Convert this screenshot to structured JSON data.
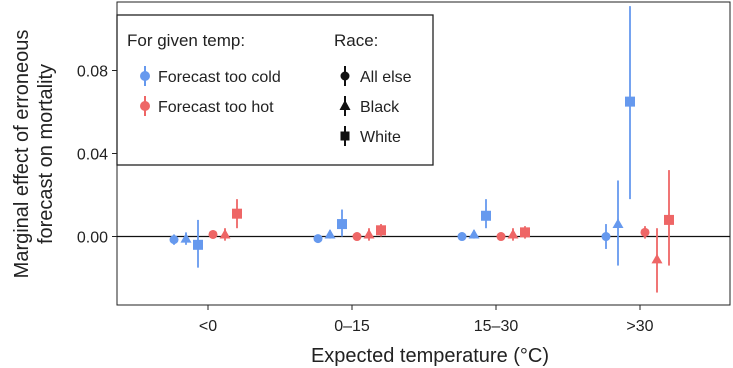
{
  "chart_data": {
    "type": "scatter",
    "xlabel": "Expected temperature (°C)",
    "ylabel_line1": "Marginal effect of erroneous",
    "ylabel_line2": "forecast on mortality",
    "categories": [
      "<0",
      "0–15",
      "15–30",
      ">30"
    ],
    "ylim": [
      -0.033,
      0.113
    ],
    "yticks": [
      0.0,
      0.04,
      0.08
    ],
    "ytick_labels": [
      "0.00",
      "0.04",
      "0.08"
    ],
    "grid": false,
    "legend_placement": "top-left",
    "legend": {
      "color_title": "For given temp:",
      "shape_title": "Race:",
      "colors": [
        {
          "label": "Forecast too cold",
          "color": "#6699ee"
        },
        {
          "label": "Forecast too hot",
          "color": "#ee6666"
        }
      ],
      "shapes": [
        {
          "label": "All else",
          "shape": "circle"
        },
        {
          "label": "Black",
          "shape": "triangle"
        },
        {
          "label": "White",
          "shape": "square"
        }
      ]
    },
    "series": [
      {
        "forecast": "cold",
        "race": "All else",
        "values": [
          {
            "category": "<0",
            "y": -0.0015,
            "lo": -0.004,
            "hi": 0.001
          },
          {
            "category": "0–15",
            "y": -0.001,
            "lo": -0.003,
            "hi": 0.001
          },
          {
            "category": "15–30",
            "y": 0.0,
            "lo": -0.002,
            "hi": 0.002
          },
          {
            "category": ">30",
            "y": 0.0,
            "lo": -0.006,
            "hi": 0.006
          }
        ]
      },
      {
        "forecast": "cold",
        "race": "Black",
        "values": [
          {
            "category": "<0",
            "y": -0.001,
            "lo": -0.004,
            "hi": 0.002
          },
          {
            "category": "0–15",
            "y": 0.001,
            "lo": -0.001,
            "hi": 0.003
          },
          {
            "category": "15–30",
            "y": 0.001,
            "lo": -0.001,
            "hi": 0.003
          },
          {
            "category": ">30",
            "y": 0.006,
            "lo": -0.014,
            "hi": 0.027
          }
        ]
      },
      {
        "forecast": "cold",
        "race": "White",
        "values": [
          {
            "category": "<0",
            "y": -0.004,
            "lo": -0.015,
            "hi": 0.008
          },
          {
            "category": "0–15",
            "y": 0.006,
            "lo": 0.0,
            "hi": 0.013
          },
          {
            "category": "15–30",
            "y": 0.01,
            "lo": 0.004,
            "hi": 0.018
          },
          {
            "category": ">30",
            "y": 0.065,
            "lo": 0.018,
            "hi": 0.111
          }
        ]
      },
      {
        "forecast": "hot",
        "race": "All else",
        "values": [
          {
            "category": "<0",
            "y": 0.001,
            "lo": -0.001,
            "hi": 0.003
          },
          {
            "category": "0–15",
            "y": 0.0,
            "lo": -0.002,
            "hi": 0.002
          },
          {
            "category": "15–30",
            "y": 0.0,
            "lo": -0.002,
            "hi": 0.002
          },
          {
            "category": ">30",
            "y": 0.002,
            "lo": -0.001,
            "hi": 0.005
          }
        ]
      },
      {
        "forecast": "hot",
        "race": "Black",
        "values": [
          {
            "category": "<0",
            "y": 0.001,
            "lo": -0.002,
            "hi": 0.004
          },
          {
            "category": "0–15",
            "y": 0.001,
            "lo": -0.002,
            "hi": 0.004
          },
          {
            "category": "15–30",
            "y": 0.001,
            "lo": -0.002,
            "hi": 0.004
          },
          {
            "category": ">30",
            "y": -0.011,
            "lo": -0.027,
            "hi": 0.004
          }
        ]
      },
      {
        "forecast": "hot",
        "race": "White",
        "values": [
          {
            "category": "<0",
            "y": 0.011,
            "lo": 0.004,
            "hi": 0.018
          },
          {
            "category": "0–15",
            "y": 0.003,
            "lo": 0.0,
            "hi": 0.006
          },
          {
            "category": "15–30",
            "y": 0.002,
            "lo": -0.001,
            "hi": 0.005
          },
          {
            "category": ">30",
            "y": 0.008,
            "lo": -0.014,
            "hi": 0.032
          }
        ]
      }
    ]
  }
}
